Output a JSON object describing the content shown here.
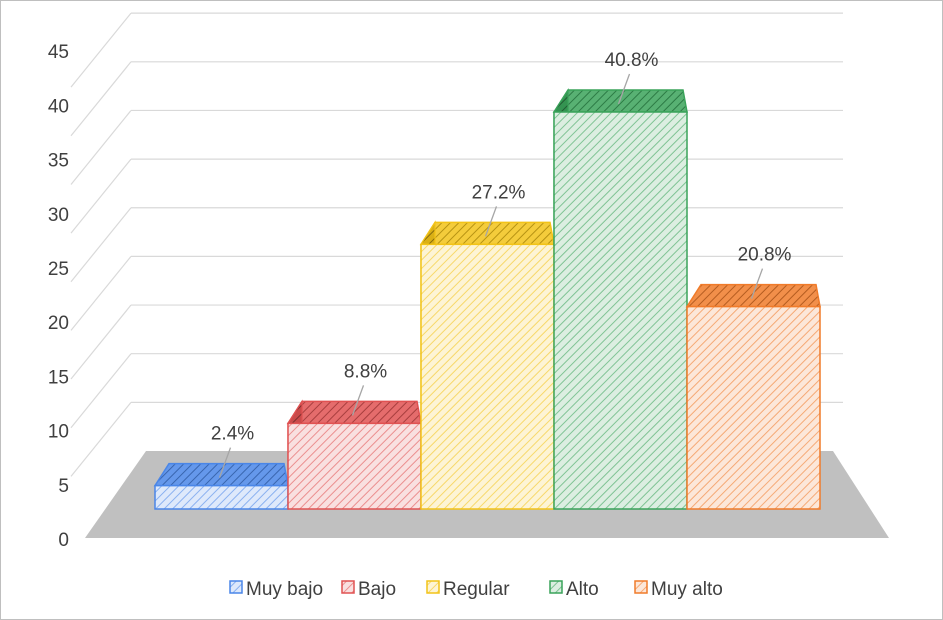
{
  "chart_data": {
    "type": "bar",
    "categories": [
      "Muy bajo",
      "Bajo",
      "Regular",
      "Alto",
      "Muy alto"
    ],
    "values": [
      2.4,
      8.8,
      27.2,
      40.8,
      20.8
    ],
    "data_labels": [
      "2.4%",
      "8.8%",
      "27.2%",
      "40.8%",
      "20.8%"
    ],
    "y_ticks": [
      "0",
      "5",
      "10",
      "15",
      "20",
      "25",
      "30",
      "35",
      "40",
      "45"
    ],
    "ylim": [
      0,
      45
    ],
    "grid": true,
    "legend_position": "bottom",
    "style": "3d-hatched",
    "colors": {
      "Muy bajo": "#4a86e8",
      "Bajo": "#e05252",
      "Regular": "#f2c318",
      "Alto": "#3aa35a",
      "Muy alto": "#f07b2a",
      "floor": "#c0c0c0",
      "gridline": "#d9d9d9"
    }
  }
}
